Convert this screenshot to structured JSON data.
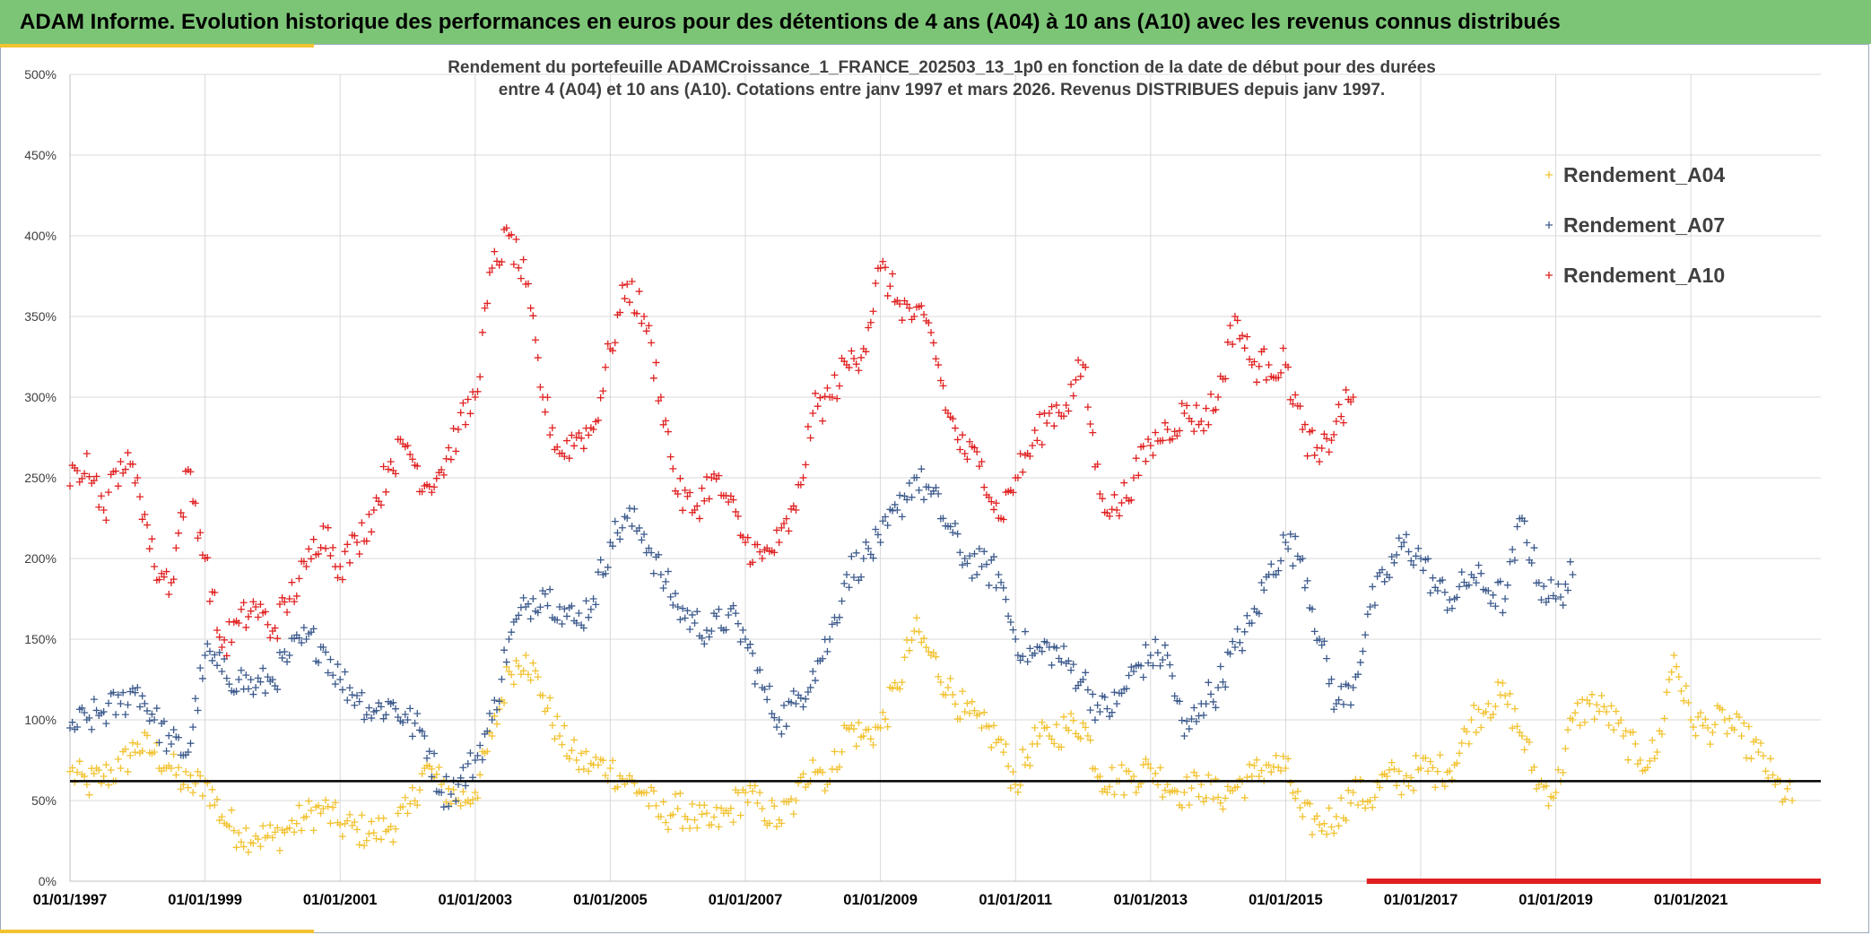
{
  "banner": {
    "title": "ADAM Informe. Evolution historique des performances en euros pour des détentions de 4 ans (A04) à 10 ans (A10) avec les revenus connus distribués"
  },
  "chart_data": {
    "type": "scatter",
    "title_line1": "Rendement du portefeuille ADAMCroissance_1_FRANCE_202503_13_1p0  en fonction de la date de début pour des durées",
    "title_line2": "entre 4 (A04) et 10 ans (A10). Cotations entre janv 1997 et mars 2026. Revenus DISTRIBUES depuis janv 1997.",
    "xlabel": "",
    "ylabel": "",
    "x_range": [
      1997.0,
      2023.0
    ],
    "ylim": [
      0,
      500
    ],
    "y_ticks": [
      0,
      50,
      100,
      150,
      200,
      250,
      300,
      350,
      400,
      450,
      500
    ],
    "y_tick_labels": [
      "0%",
      "50%",
      "100%",
      "150%",
      "200%",
      "250%",
      "300%",
      "350%",
      "400%",
      "450%",
      "500%"
    ],
    "x_ticks": [
      1997,
      1999,
      2001,
      2003,
      2005,
      2007,
      2009,
      2011,
      2013,
      2015,
      2017,
      2019,
      2021
    ],
    "x_tick_labels": [
      "01/01/1997",
      "01/01/1999",
      "01/01/2001",
      "01/01/2003",
      "01/01/2005",
      "01/01/2007",
      "01/01/2009",
      "01/01/2011",
      "01/01/2013",
      "01/01/2015",
      "01/01/2017",
      "01/01/2019",
      "01/01/2021"
    ],
    "grid": true,
    "legend_position": "top-right",
    "reference_line": {
      "value": 62,
      "color": "#000000"
    },
    "series": [
      {
        "name": "Rendement_A04",
        "color": "#f2c230",
        "x": [
          1997.0,
          1997.25,
          1997.5,
          1997.75,
          1998.0,
          1998.25,
          1998.5,
          1998.75,
          1999.0,
          1999.25,
          1999.5,
          1999.75,
          2000.0,
          2000.25,
          2000.5,
          2000.75,
          2001.0,
          2001.25,
          2001.5,
          2001.75,
          2002.0,
          2002.25,
          2002.5,
          2002.75,
          2003.0,
          2003.25,
          2003.5,
          2003.75,
          2004.0,
          2004.25,
          2004.5,
          2004.75,
          2005.0,
          2005.25,
          2005.5,
          2005.75,
          2006.0,
          2006.25,
          2006.5,
          2006.75,
          2007.0,
          2007.25,
          2007.5,
          2007.75,
          2008.0,
          2008.25,
          2008.5,
          2008.75,
          2009.0,
          2009.25,
          2009.5,
          2009.75,
          2010.0,
          2010.25,
          2010.5,
          2010.75,
          2011.0,
          2011.25,
          2011.5,
          2011.75,
          2012.0,
          2012.25,
          2012.5,
          2012.75,
          2013.0,
          2013.25,
          2013.5,
          2013.75,
          2014.0,
          2014.25,
          2014.5,
          2014.75,
          2015.0,
          2015.25,
          2015.5,
          2015.75,
          2016.0,
          2016.25,
          2016.5,
          2016.75,
          2017.0,
          2017.25,
          2017.5,
          2017.75,
          2018.0,
          2018.25,
          2018.5,
          2018.75,
          2019.0,
          2019.25,
          2019.5,
          2019.75,
          2020.0,
          2020.25,
          2020.5,
          2020.75,
          2021.0,
          2021.25,
          2021.5,
          2021.75,
          2022.0,
          2022.25,
          2022.5
        ],
        "values": [
          68,
          60,
          65,
          70,
          85,
          80,
          70,
          58,
          62,
          40,
          30,
          28,
          27,
          33,
          40,
          45,
          35,
          32,
          30,
          34,
          42,
          70,
          60,
          50,
          55,
          90,
          130,
          140,
          115,
          90,
          75,
          72,
          70,
          62,
          55,
          40,
          45,
          38,
          35,
          42,
          55,
          45,
          38,
          50,
          75,
          62,
          95,
          90,
          95,
          120,
          155,
          140,
          120,
          105,
          95,
          88,
          60,
          85,
          90,
          95,
          98,
          65,
          62,
          65,
          70,
          60,
          55,
          60,
          52,
          58,
          65,
          72,
          70,
          40,
          35,
          40,
          55,
          50,
          65,
          62,
          70,
          68,
          72,
          100,
          110,
          115,
          90,
          60,
          55,
          100,
          110,
          105,
          90,
          75,
          80,
          140,
          100,
          95,
          100,
          90,
          80,
          60,
          50
        ]
      },
      {
        "name": "Rendement_A07",
        "color": "#3c5a8c",
        "x": [
          1997.0,
          1997.25,
          1997.5,
          1997.75,
          1998.0,
          1998.25,
          1998.5,
          1998.75,
          1999.0,
          1999.25,
          1999.5,
          1999.75,
          2000.0,
          2000.25,
          2000.5,
          2000.75,
          2001.0,
          2001.25,
          2001.5,
          2001.75,
          2002.0,
          2002.25,
          2002.5,
          2002.75,
          2003.0,
          2003.25,
          2003.5,
          2003.75,
          2004.0,
          2004.25,
          2004.5,
          2004.75,
          2005.0,
          2005.25,
          2005.5,
          2005.75,
          2006.0,
          2006.25,
          2006.5,
          2006.75,
          2007.0,
          2007.25,
          2007.5,
          2007.75,
          2008.0,
          2008.25,
          2008.5,
          2008.75,
          2009.0,
          2009.25,
          2009.5,
          2009.75,
          2010.0,
          2010.25,
          2010.5,
          2010.75,
          2011.0,
          2011.25,
          2011.5,
          2011.75,
          2012.0,
          2012.25,
          2012.5,
          2012.75,
          2013.0,
          2013.25,
          2013.5,
          2013.75,
          2014.0,
          2014.25,
          2014.5,
          2014.75,
          2015.0,
          2015.25,
          2015.5,
          2015.75,
          2016.0,
          2016.25,
          2016.5,
          2016.75,
          2017.0,
          2017.25,
          2017.5,
          2017.75,
          2018.0,
          2018.25,
          2018.5,
          2018.75,
          2019.0,
          2019.25
        ],
        "values": [
          95,
          100,
          105,
          110,
          120,
          100,
          85,
          80,
          140,
          130,
          125,
          120,
          125,
          140,
          150,
          145,
          125,
          115,
          105,
          110,
          100,
          90,
          55,
          60,
          75,
          100,
          150,
          170,
          180,
          170,
          160,
          175,
          210,
          225,
          215,
          190,
          170,
          160,
          155,
          165,
          150,
          120,
          100,
          110,
          130,
          150,
          190,
          200,
          210,
          230,
          250,
          240,
          220,
          200,
          195,
          190,
          150,
          140,
          145,
          135,
          125,
          105,
          110,
          130,
          140,
          140,
          90,
          110,
          120,
          145,
          160,
          190,
          210,
          200,
          150,
          110,
          120,
          170,
          190,
          210,
          200,
          180,
          175,
          190,
          180,
          175,
          225,
          185,
          175,
          190
        ]
      },
      {
        "name": "Rendement_A10",
        "color": "#e02020",
        "x": [
          1997.0,
          1997.25,
          1997.5,
          1997.75,
          1998.0,
          1998.25,
          1998.5,
          1998.75,
          1999.0,
          1999.25,
          1999.5,
          1999.75,
          2000.0,
          2000.25,
          2000.5,
          2000.75,
          2001.0,
          2001.25,
          2001.5,
          2001.75,
          2002.0,
          2002.25,
          2002.5,
          2002.75,
          2003.0,
          2003.25,
          2003.5,
          2003.75,
          2004.0,
          2004.25,
          2004.5,
          2004.75,
          2005.0,
          2005.25,
          2005.5,
          2005.75,
          2006.0,
          2006.25,
          2006.5,
          2006.75,
          2007.0,
          2007.25,
          2007.5,
          2007.75,
          2008.0,
          2008.25,
          2008.5,
          2008.75,
          2009.0,
          2009.25,
          2009.5,
          2009.75,
          2010.0,
          2010.25,
          2010.5,
          2010.75,
          2011.0,
          2011.25,
          2011.5,
          2011.75,
          2012.0,
          2012.25,
          2012.5,
          2012.75,
          2013.0,
          2013.25,
          2013.5,
          2013.75,
          2014.0,
          2014.25,
          2014.5,
          2014.75,
          2015.0,
          2015.25,
          2015.5,
          2015.75,
          2016.0
        ],
        "values": [
          245,
          265,
          230,
          260,
          250,
          195,
          185,
          255,
          200,
          145,
          160,
          170,
          155,
          175,
          195,
          220,
          195,
          210,
          230,
          260,
          270,
          245,
          255,
          280,
          300,
          380,
          400,
          370,
          300,
          265,
          275,
          280,
          330,
          370,
          350,
          300,
          240,
          230,
          250,
          235,
          210,
          200,
          210,
          230,
          290,
          300,
          320,
          330,
          380,
          360,
          350,
          340,
          290,
          265,
          260,
          225,
          250,
          270,
          290,
          295,
          320,
          240,
          230,
          250,
          270,
          280,
          290,
          285,
          300,
          350,
          320,
          320,
          320,
          280,
          260,
          285,
          300
        ]
      }
    ]
  }
}
